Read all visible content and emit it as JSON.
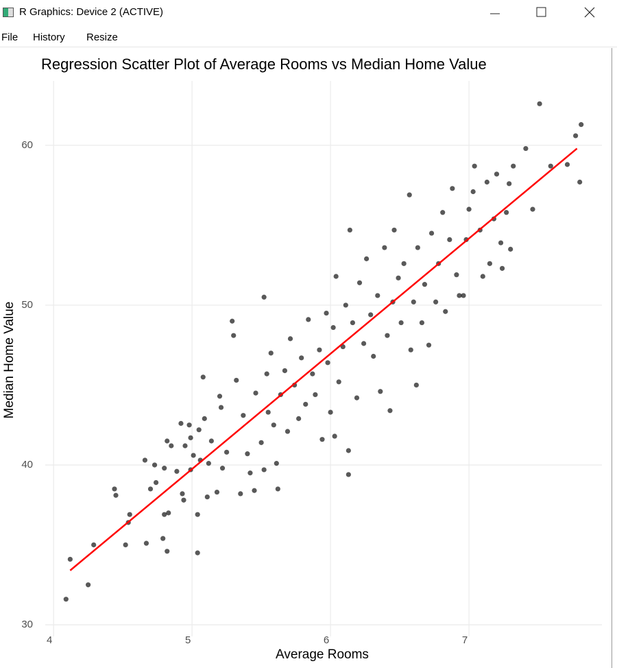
{
  "window": {
    "title": "R Graphics: Device 2 (ACTIVE)",
    "menu": [
      "File",
      "History",
      "Resize"
    ]
  },
  "chart_data": {
    "type": "scatter",
    "title": "Regression Scatter Plot of Average Rooms vs Median Home Value",
    "x_label": "Average Rooms",
    "y_label": "Median Home Value",
    "xlim": [
      3.94,
      7.96
    ],
    "ylim": [
      29.27,
      64.03
    ],
    "xticks": [
      4,
      5,
      6,
      7
    ],
    "yticks": [
      30,
      40,
      50,
      60
    ],
    "grid": true,
    "color": "#000000",
    "x": [
      4.09,
      4.12,
      4.25,
      4.29,
      4.44,
      4.45,
      4.52,
      4.54,
      4.55,
      4.66,
      4.67,
      4.7,
      4.73,
      4.74,
      4.79,
      4.8,
      4.8,
      4.82,
      4.82,
      4.83,
      4.85,
      4.89,
      4.92,
      4.93,
      4.94,
      4.95,
      4.98,
      4.99,
      4.99,
      5.01,
      5.04,
      5.04,
      5.05,
      5.06,
      5.08,
      5.09,
      5.11,
      5.12,
      5.14,
      5.18,
      5.2,
      5.21,
      5.22,
      5.25,
      5.29,
      5.3,
      5.32,
      5.35,
      5.37,
      5.4,
      5.42,
      5.45,
      5.46,
      5.5,
      5.52,
      5.52,
      5.54,
      5.55,
      5.57,
      5.59,
      5.61,
      5.62,
      5.64,
      5.67,
      5.69,
      5.71,
      5.74,
      5.77,
      5.79,
      5.82,
      5.84,
      5.87,
      5.89,
      5.92,
      5.94,
      5.97,
      5.98,
      6.0,
      6.02,
      6.03,
      6.04,
      6.06,
      6.09,
      6.11,
      6.13,
      6.13,
      6.14,
      6.16,
      6.19,
      6.21,
      6.24,
      6.26,
      6.29,
      6.31,
      6.34,
      6.36,
      6.39,
      6.41,
      6.43,
      6.45,
      6.46,
      6.49,
      6.51,
      6.53,
      6.57,
      6.58,
      6.6,
      6.62,
      6.63,
      6.66,
      6.68,
      6.71,
      6.73,
      6.76,
      6.78,
      6.81,
      6.83,
      6.86,
      6.88,
      6.91,
      6.93,
      6.96,
      6.98,
      7.0,
      7.03,
      7.04,
      7.08,
      7.1,
      7.13,
      7.15,
      7.18,
      7.2,
      7.23,
      7.24,
      7.27,
      7.29,
      7.3,
      7.32,
      7.41,
      7.46,
      7.51,
      7.59,
      7.71,
      7.77,
      7.8,
      7.81
    ],
    "values": [
      31.6,
      34.1,
      32.5,
      35.0,
      38.5,
      38.1,
      35.0,
      36.4,
      36.9,
      40.3,
      35.1,
      38.5,
      40.0,
      38.9,
      35.4,
      39.8,
      36.9,
      41.5,
      34.6,
      37.0,
      41.2,
      39.6,
      42.6,
      38.2,
      37.8,
      41.2,
      42.5,
      41.7,
      39.7,
      40.6,
      36.9,
      34.5,
      42.2,
      40.3,
      45.5,
      42.9,
      38.0,
      40.1,
      41.5,
      38.3,
      44.3,
      43.6,
      39.8,
      40.8,
      49.0,
      48.1,
      45.3,
      38.2,
      43.1,
      40.7,
      39.5,
      38.4,
      44.5,
      41.4,
      39.7,
      50.5,
      45.7,
      43.3,
      47.0,
      42.5,
      40.1,
      38.5,
      44.4,
      45.9,
      42.1,
      47.9,
      45.0,
      42.9,
      46.7,
      43.8,
      49.1,
      45.7,
      44.4,
      47.2,
      41.6,
      49.5,
      46.4,
      43.3,
      48.6,
      41.8,
      51.8,
      45.2,
      47.4,
      50.0,
      40.9,
      39.4,
      54.7,
      48.9,
      44.2,
      51.4,
      47.6,
      52.9,
      49.4,
      46.8,
      50.6,
      44.6,
      53.6,
      48.1,
      43.4,
      50.2,
      54.7,
      51.7,
      48.9,
      52.6,
      56.9,
      47.2,
      50.2,
      45.0,
      53.6,
      48.9,
      51.3,
      47.5,
      54.5,
      50.2,
      52.6,
      55.8,
      49.6,
      54.1,
      57.3,
      51.9,
      50.6,
      50.6,
      54.1,
      56.0,
      57.1,
      58.7,
      54.7,
      51.8,
      57.7,
      52.6,
      55.4,
      58.2,
      53.9,
      52.3,
      55.8,
      57.6,
      53.5,
      58.7,
      59.8,
      56.0,
      62.6,
      58.7,
      58.8,
      60.6,
      57.7,
      61.3
    ],
    "fit": {
      "x": [
        4.12,
        7.78
      ],
      "values": [
        33.4,
        59.8
      ],
      "color": "#ff0000"
    }
  }
}
